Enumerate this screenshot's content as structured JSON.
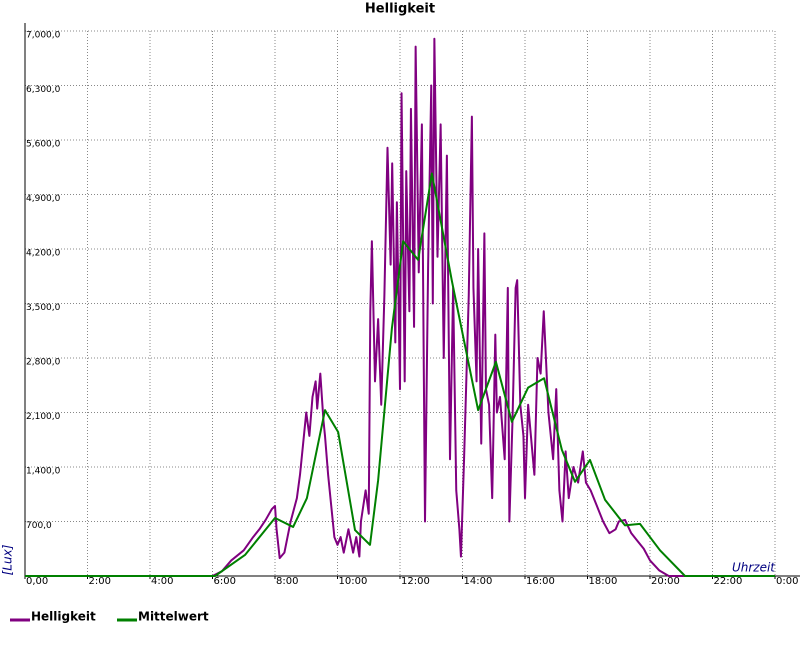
{
  "chart_data": {
    "type": "line",
    "title": "Helligkeit",
    "xlabel": "Uhrzeit",
    "ylabel": "[Lux]",
    "xlim": [
      0,
      24
    ],
    "ylim": [
      0,
      7000
    ],
    "xticks": [
      {
        "value": 0,
        "label": "0,00"
      },
      {
        "value": 2,
        "label": "2:00"
      },
      {
        "value": 4,
        "label": "4:00"
      },
      {
        "value": 6,
        "label": "6:00"
      },
      {
        "value": 8,
        "label": "8:00"
      },
      {
        "value": 10,
        "label": "10:00"
      },
      {
        "value": 12,
        "label": "12:00"
      },
      {
        "value": 14,
        "label": "14:00"
      },
      {
        "value": 16,
        "label": "16:00"
      },
      {
        "value": 18,
        "label": "18:00"
      },
      {
        "value": 20,
        "label": "20:00"
      },
      {
        "value": 22,
        "label": "22:00"
      },
      {
        "value": 24,
        "label": "0:00"
      }
    ],
    "yticks": [
      {
        "value": 700,
        "label": "700,0"
      },
      {
        "value": 1400,
        "label": "1,400,0"
      },
      {
        "value": 2100,
        "label": "2,100,0"
      },
      {
        "value": 2800,
        "label": "2,800,0"
      },
      {
        "value": 3500,
        "label": "3,500,0"
      },
      {
        "value": 4200,
        "label": "4,200,0"
      },
      {
        "value": 4900,
        "label": "4,900,0"
      },
      {
        "value": 5600,
        "label": "5,600,0"
      },
      {
        "value": 6300,
        "label": "6,300,0"
      },
      {
        "value": 7000,
        "label": "7,000,0"
      }
    ],
    "grid": true,
    "series": [
      {
        "name": "Helligkeit",
        "color": "#800080",
        "x": [
          0,
          6,
          6.3,
          6.6,
          7,
          7.3,
          7.5,
          7.7,
          7.9,
          8.0,
          8.05,
          8.15,
          8.3,
          8.5,
          8.7,
          8.8,
          8.9,
          9.0,
          9.1,
          9.2,
          9.3,
          9.35,
          9.45,
          9.55,
          9.6,
          9.7,
          9.8,
          9.9,
          10.0,
          10.1,
          10.2,
          10.35,
          10.5,
          10.6,
          10.7,
          10.75,
          10.9,
          11.0,
          11.05,
          11.1,
          11.2,
          11.3,
          11.4,
          11.5,
          11.6,
          11.7,
          11.75,
          11.85,
          11.9,
          12.0,
          12.05,
          12.15,
          12.2,
          12.3,
          12.35,
          12.45,
          12.5,
          12.6,
          12.7,
          12.8,
          12.9,
          13.0,
          13.05,
          13.1,
          13.2,
          13.3,
          13.4,
          13.5,
          13.6,
          13.7,
          13.8,
          13.9,
          13.95,
          14.05,
          14.2,
          14.3,
          14.35,
          14.45,
          14.5,
          14.6,
          14.7,
          14.75,
          14.85,
          14.95,
          15.05,
          15.1,
          15.2,
          15.35,
          15.45,
          15.5,
          15.6,
          15.7,
          15.75,
          15.85,
          15.95,
          16.0,
          16.1,
          16.3,
          16.4,
          16.5,
          16.6,
          16.75,
          16.9,
          17.0,
          17.1,
          17.2,
          17.3,
          17.4,
          17.55,
          17.7,
          17.85,
          17.95,
          18.1,
          18.3,
          18.5,
          18.7,
          18.9,
          19.0,
          19.2,
          19.4,
          19.6,
          19.8,
          20.0,
          20.3,
          20.6,
          24
        ],
        "values": [
          0,
          0,
          60,
          200,
          330,
          500,
          600,
          720,
          860,
          900,
          600,
          230,
          300,
          700,
          1000,
          1300,
          1700,
          2100,
          1800,
          2300,
          2500,
          2150,
          2600,
          2000,
          1800,
          1300,
          900,
          500,
          400,
          500,
          300,
          600,
          300,
          500,
          250,
          700,
          1100,
          800,
          3400,
          4300,
          2500,
          3300,
          2200,
          3600,
          5500,
          4000,
          5300,
          3000,
          4800,
          2400,
          6200,
          2500,
          5200,
          3400,
          6000,
          3200,
          6800,
          3900,
          5800,
          700,
          4000,
          6300,
          3500,
          6900,
          4100,
          5800,
          2800,
          5400,
          1500,
          3700,
          1100,
          600,
          250,
          1500,
          3600,
          5900,
          3700,
          2500,
          4200,
          1700,
          4400,
          2400,
          2200,
          1000,
          3100,
          2100,
          2300,
          1500,
          3700,
          700,
          2000,
          3700,
          3800,
          2200,
          1800,
          1000,
          2200,
          1300,
          2800,
          2600,
          3400,
          2100,
          1500,
          2400,
          1100,
          700,
          1600,
          1000,
          1400,
          1200,
          1600,
          1200,
          1100,
          900,
          700,
          550,
          600,
          700,
          720,
          550,
          450,
          350,
          200,
          70,
          0,
          0
        ]
      },
      {
        "name": "Mittelwert",
        "color": "#008000",
        "x": [
          0,
          6.08,
          7.04,
          8.0,
          8.58,
          9.02,
          9.6,
          10.02,
          10.56,
          11.04,
          11.3,
          11.74,
          12.1,
          12.58,
          13.02,
          13.66,
          14.5,
          15.07,
          15.58,
          16.1,
          16.61,
          17.18,
          17.6,
          18.08,
          18.56,
          19.2,
          19.68,
          20.32,
          21.12,
          24
        ],
        "values": [
          0,
          0,
          270,
          745,
          630,
          1000,
          2130,
          1850,
          590,
          400,
          1230,
          3180,
          4300,
          4060,
          5170,
          3790,
          2130,
          2750,
          1980,
          2420,
          2540,
          1620,
          1210,
          1490,
          980,
          650,
          670,
          330,
          0,
          0
        ]
      }
    ]
  }
}
